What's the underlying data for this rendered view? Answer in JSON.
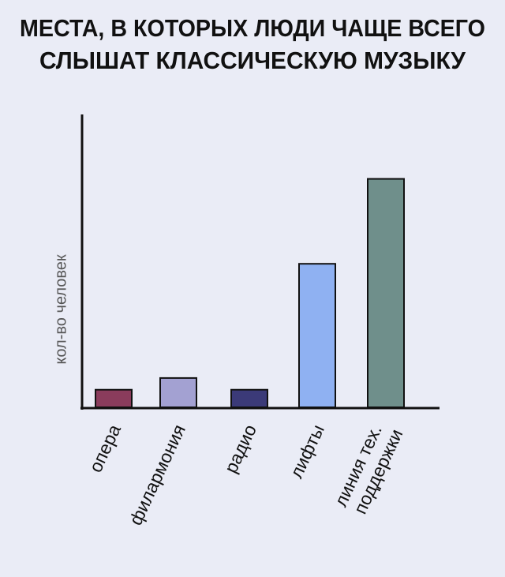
{
  "chart_data": {
    "type": "bar",
    "title": [
      "МЕСТА, В КОТОРЫХ ЛЮДИ ЧАЩЕ ВСЕГО",
      "СЛЫШАТ КЛАССИЧЕСКУЮ МУЗЫКУ"
    ],
    "y_label": "кол-во человек",
    "categories": [
      "опера",
      "филармония",
      "радио",
      "лифты",
      "линия тех. поддержки"
    ],
    "values": [
      6,
      10,
      6,
      49,
      78
    ],
    "colors": [
      "#8a3c5c",
      "#a3a1d2",
      "#3b3a78",
      "#8fb1f2",
      "#6f8f8b"
    ],
    "ylim": [
      0,
      100
    ]
  }
}
